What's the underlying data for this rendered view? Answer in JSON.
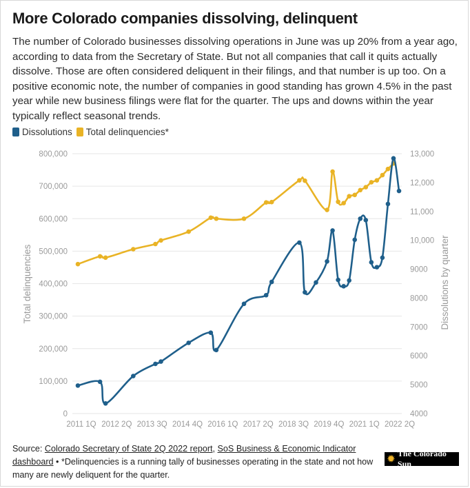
{
  "title": "More Colorado companies dissolving, delinquent",
  "description": "The number of Colorado businesses dissolving operations in June was up 20% from a year ago, according to data from the Secretary of State. But not all companies that call it quits actually dissolve. Those are often considered deliquent in their filings, and that number is up too. On a positive economic note, the number of companies in good standing has grown 4.5% in the past year while new business filings were flat for the quarter. The ups and downs within the year typically reflect seasonal trends.",
  "legend": {
    "dissolutions": "Dissolutions",
    "delinquencies": "Total delinquencies*"
  },
  "colors": {
    "dissolutions": "#1f5f8b",
    "delinquencies": "#e9b325",
    "grid": "#e6e6e6"
  },
  "footer": {
    "source_prefix": "Source: ",
    "link1": "Colorado Secretary of State 2Q 2022 report",
    "sep": ", ",
    "link2": "SoS Business & Economic Indicator dashboard",
    "note": " • *Delinquencies is a running tally of businesses operating in the state and not how many are newly deliquent for the quarter."
  },
  "logo": {
    "icon": "sun-icon",
    "text": "The Colorado Sun"
  },
  "chart_data": {
    "type": "line",
    "x_tick_labels": [
      "2011 1Q",
      "2012 2Q",
      "2013 3Q",
      "2014 4Q",
      "2016 1Q",
      "2017 2Q",
      "2018 3Q",
      "2019 4Q",
      "2021 1Q",
      "2022 2Q"
    ],
    "y_left": {
      "label": "Total delinquencies",
      "range": [
        0,
        800000
      ],
      "ticks": [
        "0",
        "100,000",
        "200,000",
        "300,000",
        "400,000",
        "500,000",
        "600,000",
        "700,000",
        "800,000"
      ]
    },
    "y_right": {
      "label": "Dissolutions by quarter",
      "range": [
        4000,
        13000
      ],
      "ticks": [
        "4000",
        "5000",
        "6000",
        "7000",
        "8000",
        "9000",
        "10,000",
        "11,000",
        "12,000",
        "13,000"
      ]
    },
    "grid": "horizontal",
    "legend_position": "top-left",
    "series": [
      {
        "name": "Total delinquencies*",
        "axis": "left",
        "points": [
          [
            0,
            460000
          ],
          [
            4,
            484000
          ],
          [
            5,
            480000
          ],
          [
            10,
            506000
          ],
          [
            14,
            522000
          ],
          [
            15,
            533000
          ],
          [
            20,
            560000
          ],
          [
            24,
            603000
          ],
          [
            25,
            600000
          ],
          [
            30,
            600000
          ],
          [
            34,
            650000
          ],
          [
            35,
            651000
          ],
          [
            40,
            718000
          ],
          [
            41,
            717000
          ],
          [
            45,
            627000
          ],
          [
            46,
            745000
          ],
          [
            47,
            652000
          ],
          [
            48,
            648000
          ],
          [
            49,
            669000
          ],
          [
            50,
            673000
          ],
          [
            51,
            688000
          ],
          [
            52,
            697000
          ],
          [
            53,
            712000
          ],
          [
            54,
            718000
          ],
          [
            55,
            734000
          ],
          [
            56,
            753000
          ],
          [
            57,
            770000
          ]
        ]
      },
      {
        "name": "Dissolutions",
        "axis": "right",
        "points": [
          [
            0,
            4970
          ],
          [
            4,
            5100
          ],
          [
            5,
            4350
          ],
          [
            10,
            5300
          ],
          [
            14,
            5720
          ],
          [
            15,
            5800
          ],
          [
            20,
            6450
          ],
          [
            24,
            6800
          ],
          [
            25,
            6200
          ],
          [
            30,
            7800
          ],
          [
            34,
            8100
          ],
          [
            35,
            8560
          ],
          [
            40,
            9920
          ],
          [
            41,
            8200
          ],
          [
            43,
            8540
          ],
          [
            45,
            9270
          ],
          [
            46,
            10340
          ],
          [
            47,
            8630
          ],
          [
            48,
            8410
          ],
          [
            49,
            8610
          ],
          [
            50,
            10020
          ],
          [
            51,
            10750
          ],
          [
            52,
            10700
          ],
          [
            53,
            9240
          ],
          [
            54,
            9070
          ],
          [
            55,
            9400
          ],
          [
            56,
            11260
          ],
          [
            57,
            12840
          ],
          [
            58,
            11710
          ]
        ]
      }
    ]
  }
}
